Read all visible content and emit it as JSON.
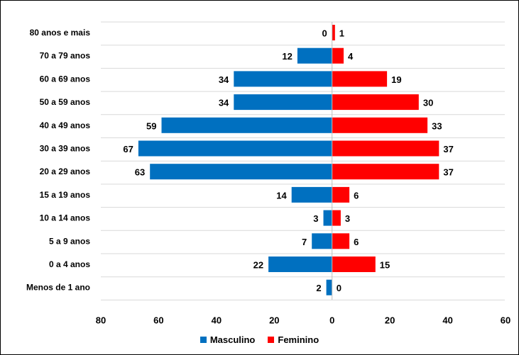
{
  "chart_data": {
    "type": "bar",
    "orientation": "horizontal",
    "categories": [
      "80 anos e mais",
      "70 a 79 anos",
      "60 a 69 anos",
      "50 a 59 anos",
      "40 a 49 anos",
      "30 a 39 anos",
      "20 a 29 anos",
      "15 a 19 anos",
      "10 a 14 anos",
      "5 a 9 anos",
      "0 a 4 anos",
      "Menos de 1 ano"
    ],
    "series": [
      {
        "name": "Masculino",
        "color": "#0070C0",
        "values": [
          0,
          12,
          34,
          34,
          59,
          67,
          63,
          14,
          3,
          7,
          22,
          2
        ]
      },
      {
        "name": "Feminino",
        "color": "#FF0000",
        "values": [
          1,
          4,
          19,
          30,
          33,
          37,
          37,
          6,
          3,
          6,
          15,
          0
        ]
      }
    ],
    "xlim": [
      -80,
      60
    ],
    "x_ticks": [
      -80,
      -60,
      -40,
      -20,
      0,
      20,
      40,
      60
    ],
    "x_tick_labels": [
      "80",
      "60",
      "40",
      "20",
      "0",
      "20",
      "40",
      "60"
    ],
    "grid": true,
    "legend_position": "bottom"
  }
}
